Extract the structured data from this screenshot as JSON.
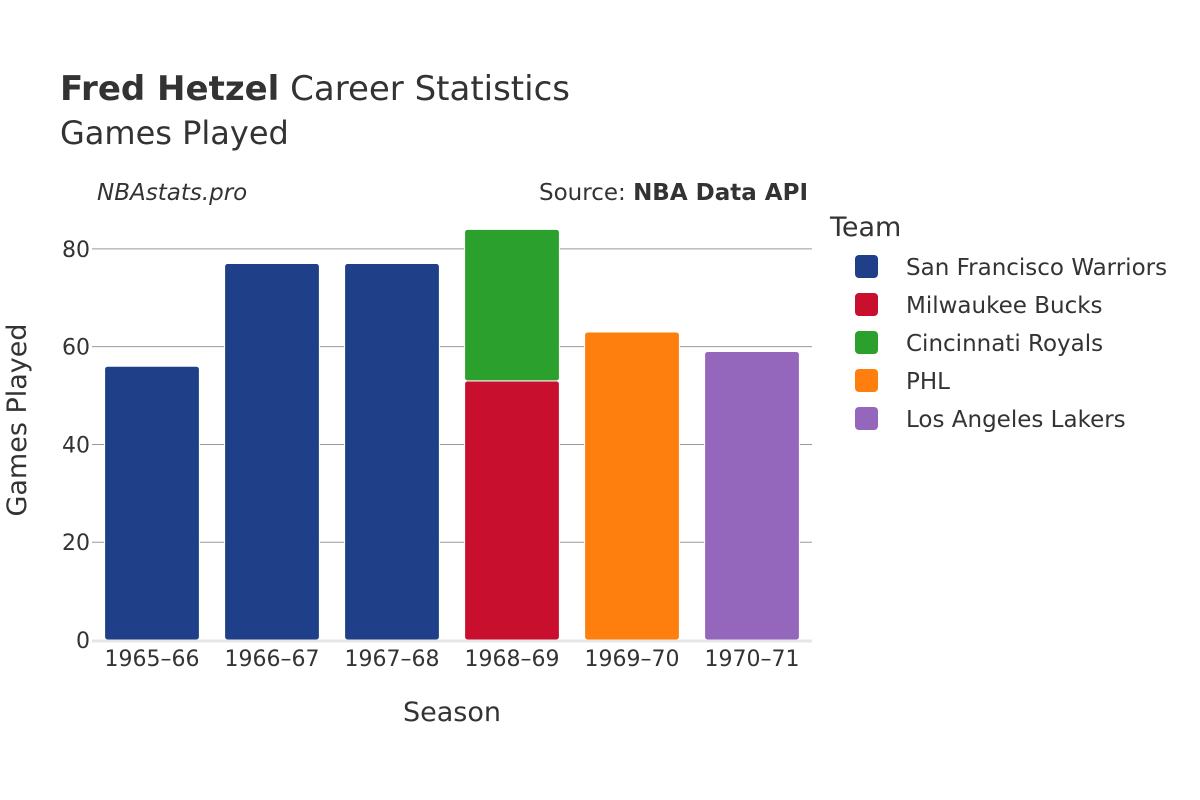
{
  "header": {
    "player_name": "Fred Hetzel",
    "title_suffix": " Career Statistics",
    "subtitle": "Games Played"
  },
  "watermark": "NBAstats.pro",
  "source": {
    "prefix": "Source: ",
    "name": "NBA Data API"
  },
  "legend": {
    "title": "Team",
    "position": "right"
  },
  "chart_data": {
    "type": "bar",
    "stacked": true,
    "xlabel": "Season",
    "ylabel": "Games Played",
    "ylim": [
      0,
      90
    ],
    "yticks": [
      0,
      20,
      40,
      60,
      80
    ],
    "grid": true,
    "categories": [
      "1965–66",
      "1966–67",
      "1967–68",
      "1968–69",
      "1969–70",
      "1970–71"
    ],
    "series": [
      {
        "name": "San Francisco Warriors",
        "color": "#1f4088",
        "values": [
          56,
          77,
          77,
          0,
          0,
          0
        ]
      },
      {
        "name": "Milwaukee Bucks",
        "color": "#c8102e",
        "values": [
          0,
          0,
          0,
          53,
          0,
          0
        ]
      },
      {
        "name": "Cincinnati Royals",
        "color": "#2ca02c",
        "values": [
          0,
          0,
          0,
          31,
          0,
          0
        ]
      },
      {
        "name": "PHL",
        "color": "#ff7f0e",
        "values": [
          0,
          0,
          0,
          0,
          63,
          0
        ]
      },
      {
        "name": "Los Angeles Lakers",
        "color": "#9467bd",
        "values": [
          0,
          0,
          0,
          0,
          0,
          59
        ]
      }
    ]
  }
}
